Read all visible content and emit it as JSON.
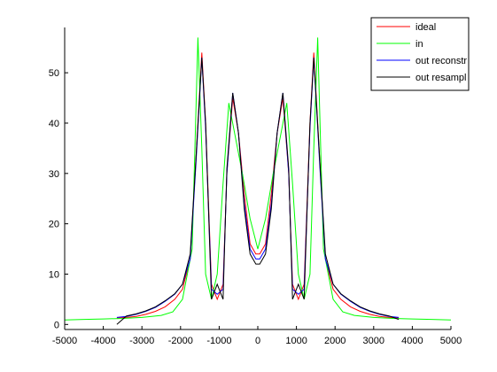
{
  "chart_data": {
    "type": "line",
    "title": "",
    "xlabel": "",
    "ylabel": "",
    "xlim": [
      -5000,
      5000
    ],
    "ylim": [
      -1,
      59
    ],
    "xticks": [
      -5000,
      -4000,
      -3000,
      -2000,
      -1000,
      0,
      1000,
      2000,
      3000,
      4000,
      5000
    ],
    "yticks": [
      0,
      10,
      20,
      30,
      40,
      50
    ],
    "grid": false,
    "legend_position": "top-right",
    "series": [
      {
        "name": "ideal",
        "color": "#ff0000",
        "x": [
          -3650,
          -3400,
          -3150,
          -2900,
          -2650,
          -2400,
          -2150,
          -1950,
          -1750,
          -1600,
          -1450,
          -1350,
          -1200,
          -1050,
          -900,
          -800,
          -650,
          -500,
          -350,
          -200,
          -50,
          50,
          200,
          350,
          500,
          650,
          800,
          900,
          1050,
          1200,
          1350,
          1450,
          1600,
          1750,
          1950,
          2150,
          2400,
          2650,
          2900,
          3150,
          3400,
          3650
        ],
        "y": [
          1.3,
          1.4,
          1.6,
          2,
          2.6,
          3.5,
          5,
          7,
          13,
          33,
          54,
          40,
          8,
          5,
          8,
          30,
          45,
          38,
          26,
          16,
          14,
          14,
          16,
          26,
          38,
          45,
          30,
          8,
          5,
          8,
          40,
          54,
          33,
          13,
          7,
          5,
          3.5,
          2.6,
          2,
          1.6,
          1.4,
          1.3
        ]
      },
      {
        "name": "in",
        "color": "#00ff00",
        "x": [
          -5000,
          -4500,
          -4000,
          -3500,
          -3000,
          -2500,
          -2200,
          -1950,
          -1700,
          -1550,
          -1450,
          -1350,
          -1200,
          -1050,
          -900,
          -750,
          -600,
          -400,
          -200,
          0,
          200,
          400,
          600,
          750,
          900,
          1050,
          1200,
          1350,
          1450,
          1550,
          1700,
          1950,
          2200,
          2500,
          3000,
          3500,
          4000,
          4500,
          5000
        ],
        "y": [
          0.9,
          1,
          1.1,
          1.2,
          1.4,
          1.8,
          2.5,
          5,
          15,
          57,
          35,
          10,
          5,
          10,
          28,
          44,
          38,
          30,
          21,
          15,
          21,
          30,
          38,
          44,
          28,
          10,
          5,
          10,
          35,
          57,
          15,
          5,
          2.5,
          1.8,
          1.4,
          1.2,
          1.1,
          1,
          0.9
        ]
      },
      {
        "name": "out reconstr",
        "color": "#0000ff",
        "x": [
          -3650,
          -3400,
          -3150,
          -2900,
          -2650,
          -2400,
          -2150,
          -1950,
          -1750,
          -1600,
          -1450,
          -1350,
          -1200,
          -1050,
          -900,
          -800,
          -650,
          -500,
          -350,
          -200,
          -50,
          50,
          200,
          350,
          500,
          650,
          800,
          900,
          1050,
          1200,
          1350,
          1450,
          1600,
          1750,
          1950,
          2150,
          2400,
          2650,
          2900,
          3150,
          3400,
          3650
        ],
        "y": [
          1.4,
          1.6,
          2,
          2.6,
          3.4,
          4.6,
          6,
          8,
          13,
          32,
          53,
          39,
          7,
          6,
          7,
          30,
          46,
          38,
          24,
          15,
          13,
          13,
          15,
          24,
          38,
          46,
          30,
          7,
          6,
          7,
          39,
          53,
          32,
          13,
          8,
          6,
          4.6,
          3.4,
          2.6,
          2,
          1.6,
          1.4
        ]
      },
      {
        "name": "out resampl",
        "color": "#000000",
        "x": [
          -3650,
          -3400,
          -3150,
          -2900,
          -2650,
          -2400,
          -2150,
          -1950,
          -1750,
          -1600,
          -1450,
          -1350,
          -1200,
          -1050,
          -900,
          -800,
          -650,
          -500,
          -350,
          -200,
          -50,
          50,
          200,
          350,
          500,
          650,
          800,
          900,
          1050,
          1200,
          1350,
          1450,
          1600,
          1750,
          1950,
          2150,
          2400,
          2650,
          2900,
          3150,
          3400,
          3650
        ],
        "y": [
          0,
          1.7,
          2.1,
          2.7,
          3.5,
          4.7,
          6.1,
          8,
          14,
          33,
          53,
          40,
          5,
          8,
          5,
          31,
          46,
          38,
          23,
          14,
          12,
          12,
          14,
          23,
          38,
          46,
          31,
          5,
          8,
          5,
          40,
          53,
          33,
          14,
          8,
          6.1,
          4.7,
          3.5,
          2.7,
          2.1,
          1.7,
          1
        ]
      }
    ]
  }
}
